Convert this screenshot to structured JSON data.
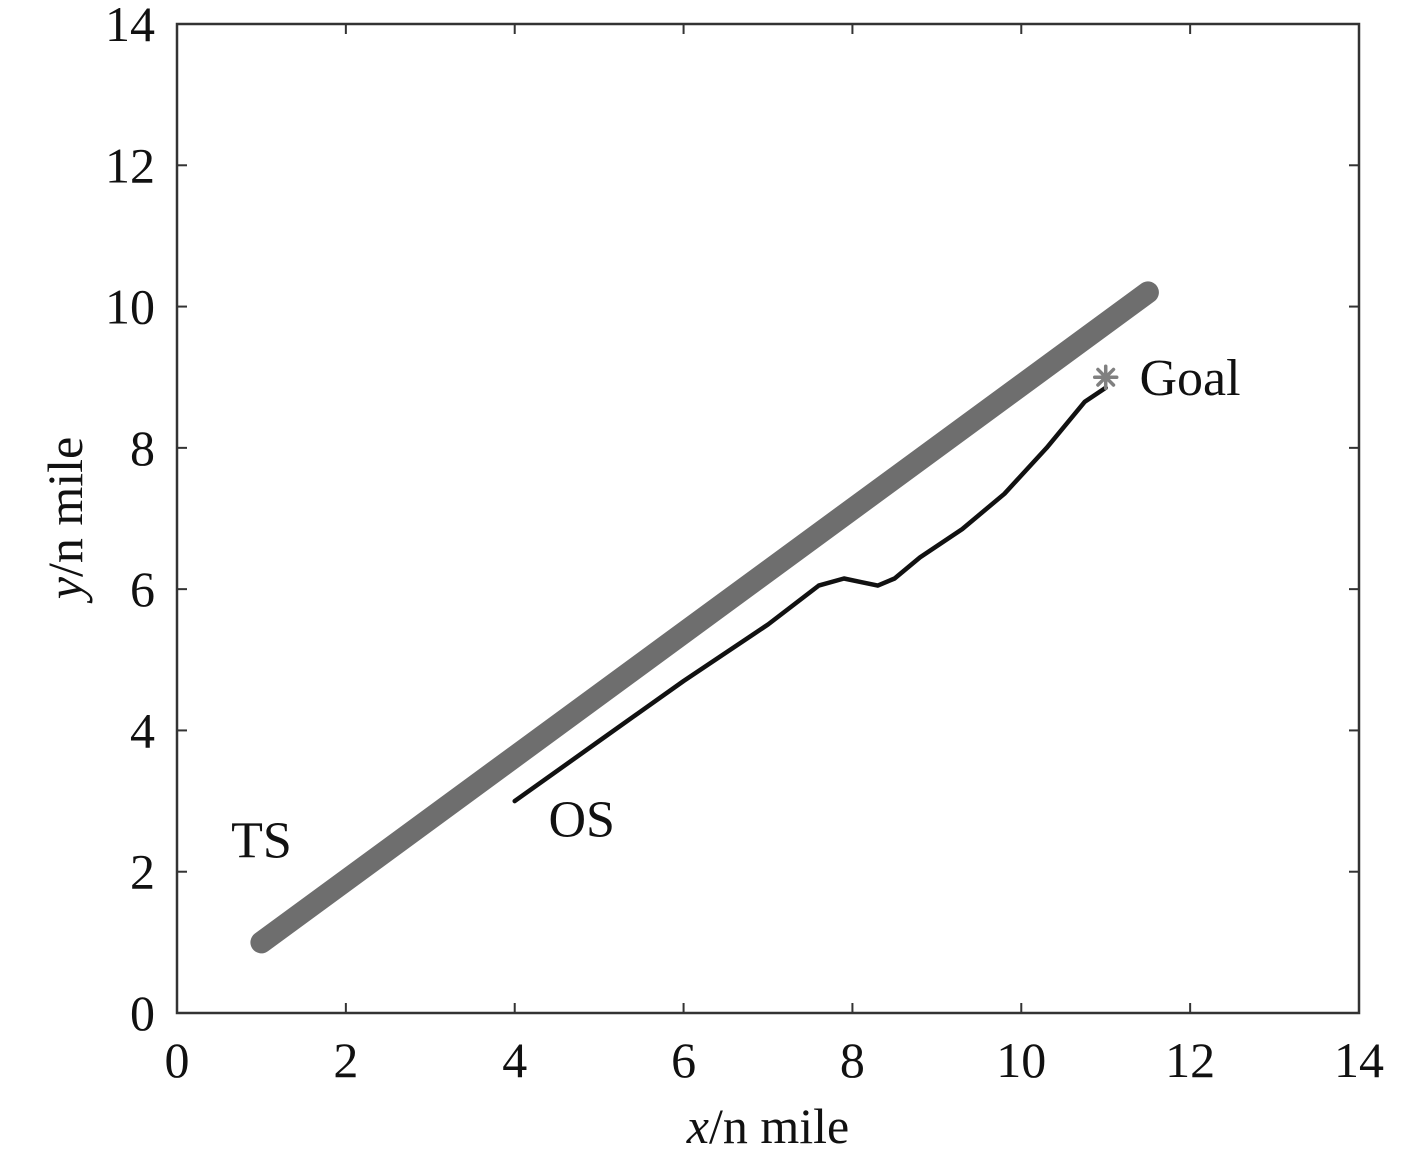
{
  "chart_data": {
    "type": "line",
    "xlabel": {
      "var": "x",
      "unit": "/n mile"
    },
    "ylabel": {
      "var": "y",
      "unit": "/n mile"
    },
    "xlim": [
      0,
      14
    ],
    "ylim": [
      0,
      14
    ],
    "xticks": [
      0,
      2,
      4,
      6,
      8,
      10,
      12,
      14
    ],
    "yticks": [
      0,
      2,
      4,
      6,
      8,
      10,
      12,
      14
    ],
    "grid": false,
    "series": [
      {
        "id": "ts",
        "color": "#6e6e6e",
        "points": [
          [
            1.0,
            1.0
          ],
          [
            11.5,
            10.2
          ]
        ]
      },
      {
        "id": "os",
        "color": "#111111",
        "points": [
          [
            4.0,
            3.0
          ],
          [
            5.0,
            3.85
          ],
          [
            6.0,
            4.7
          ],
          [
            7.0,
            5.5
          ],
          [
            7.6,
            6.05
          ],
          [
            7.9,
            6.15
          ],
          [
            8.1,
            6.1
          ],
          [
            8.3,
            6.05
          ],
          [
            8.5,
            6.15
          ],
          [
            8.8,
            6.45
          ],
          [
            9.3,
            6.85
          ],
          [
            9.8,
            7.35
          ],
          [
            10.3,
            8.0
          ],
          [
            10.75,
            8.65
          ],
          [
            11.0,
            8.85
          ]
        ]
      }
    ],
    "markers": [
      {
        "id": "goal",
        "symbol": "*",
        "x": 11.0,
        "y": 9.0,
        "color": "#808080"
      }
    ],
    "annotations": [
      {
        "id": "ts",
        "text": "TS",
        "x": 1.0,
        "y": 2.2
      },
      {
        "id": "os",
        "text": "OS",
        "x": 4.4,
        "y": 2.5
      },
      {
        "id": "goal",
        "text": "Goal",
        "x": 11.4,
        "y": 8.75
      }
    ]
  }
}
